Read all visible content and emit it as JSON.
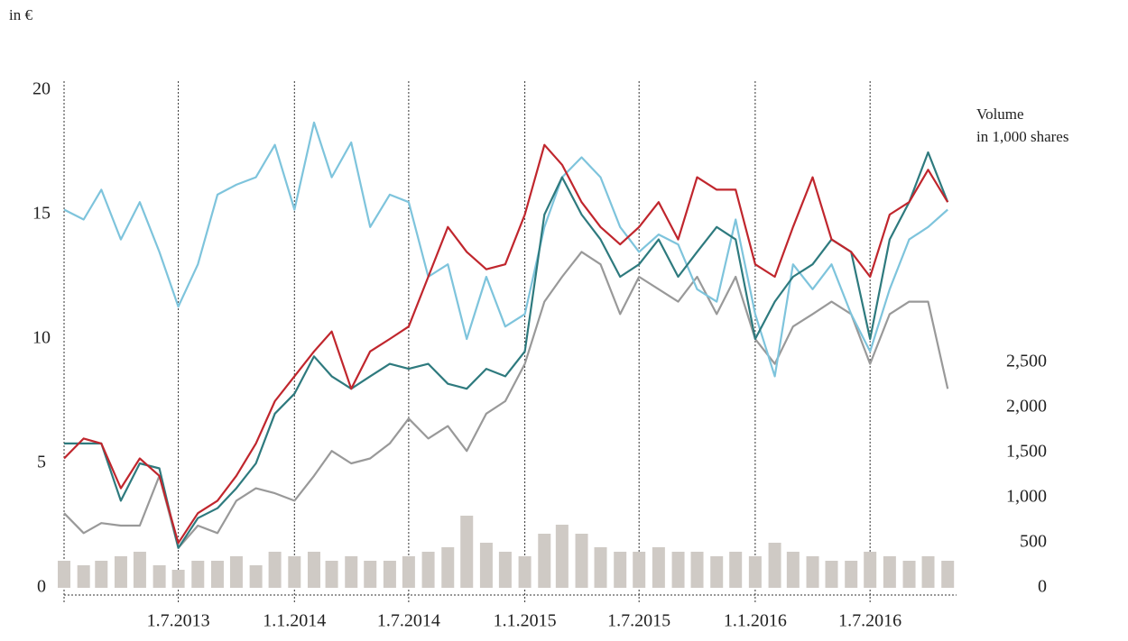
{
  "chart_data": {
    "type": "line",
    "ylabel": "in €",
    "y2label": [
      "Volume",
      "in 1,000 shares"
    ],
    "x": [
      "1.1.2013",
      "1.2.2013",
      "1.3.2013",
      "1.4.2013",
      "1.5.2013",
      "1.6.2013",
      "1.7.2013",
      "1.8.2013",
      "1.9.2013",
      "1.10.2013",
      "1.11.2013",
      "1.12.2013",
      "1.1.2014",
      "1.2.2014",
      "1.3.2014",
      "1.4.2014",
      "1.5.2014",
      "1.6.2014",
      "1.7.2014",
      "1.8.2014",
      "1.9.2014",
      "1.10.2014",
      "1.11.2014",
      "1.12.2014",
      "1.1.2015",
      "1.2.2015",
      "1.3.2015",
      "1.4.2015",
      "1.5.2015",
      "1.6.2015",
      "1.7.2015",
      "1.8.2015",
      "1.9.2015",
      "1.10.2015",
      "1.11.2015",
      "1.12.2015",
      "1.1.2016",
      "1.2.2016",
      "1.3.2016",
      "1.4.2016",
      "1.5.2016",
      "1.6.2016",
      "1.7.2016",
      "1.8.2016",
      "1.9.2016",
      "1.10.2016",
      "1.11.2016"
    ],
    "xlim": [
      "1.1.2013",
      "15.11.2016"
    ],
    "xticks": [
      "1.7.2013",
      "1.1.2014",
      "1.7.2014",
      "1.1.2015",
      "1.7.2015",
      "1.1.2016",
      "1.7.2016"
    ],
    "ylim": [
      0,
      20
    ],
    "yticks": [
      0,
      5,
      10,
      15,
      20
    ],
    "y2lim": [
      0,
      5520
    ],
    "y2ticks": [
      0,
      500,
      {
        "value": 1000,
        "label": "1,000"
      },
      {
        "value": 1500,
        "label": "1,500"
      },
      {
        "value": 2000,
        "label": "2,000"
      },
      {
        "value": 2500,
        "label": "2,500"
      }
    ],
    "grid": true,
    "series": [
      {
        "color": "#999999",
        "values": [
          3.0,
          2.2,
          2.6,
          2.5,
          2.5,
          4.5,
          1.6,
          2.5,
          2.2,
          3.5,
          4.0,
          3.8,
          3.5,
          4.5,
          5.5,
          5.0,
          5.2,
          5.8,
          6.8,
          6.0,
          6.5,
          5.5,
          7.0,
          7.5,
          9.0,
          11.5,
          12.5,
          13.5,
          13.0,
          11.0,
          12.5,
          12.0,
          11.5,
          12.5,
          11.0,
          12.5,
          10.0,
          9.0,
          10.5,
          11.0,
          11.5,
          11.0,
          9.0,
          11.0,
          11.5,
          11.5,
          8.0
        ]
      },
      {
        "color": "#7ec4dc",
        "values": [
          15.2,
          14.8,
          16.0,
          14.0,
          15.5,
          13.5,
          11.3,
          13.0,
          15.8,
          16.2,
          16.5,
          17.8,
          15.2,
          18.7,
          16.5,
          17.9,
          14.5,
          15.8,
          15.5,
          12.5,
          13.0,
          10.0,
          12.5,
          10.5,
          11.0,
          14.5,
          16.5,
          17.3,
          16.5,
          14.5,
          13.5,
          14.2,
          13.8,
          12.0,
          11.5,
          14.8,
          11.0,
          8.5,
          13.0,
          12.0,
          13.0,
          11.0,
          9.5,
          12.0,
          14.0,
          14.5,
          15.2
        ]
      },
      {
        "color": "#2e7a7e",
        "values": [
          5.8,
          5.8,
          5.8,
          3.5,
          5.0,
          4.8,
          1.6,
          2.8,
          3.2,
          4.0,
          5.0,
          7.0,
          7.8,
          9.3,
          8.5,
          8.0,
          8.5,
          9.0,
          8.8,
          9.0,
          8.2,
          8.0,
          8.8,
          8.5,
          9.5,
          15.0,
          16.5,
          15.0,
          14.0,
          12.5,
          13.0,
          14.0,
          12.5,
          13.5,
          14.5,
          14.0,
          10.0,
          11.5,
          12.5,
          13.0,
          14.0,
          13.5,
          10.0,
          14.0,
          15.5,
          17.5,
          15.5
        ]
      },
      {
        "color": "#c0262d",
        "values": [
          5.2,
          6.0,
          5.8,
          4.0,
          5.2,
          4.5,
          1.8,
          3.0,
          3.5,
          4.5,
          5.8,
          7.5,
          8.5,
          9.5,
          10.3,
          8.0,
          9.5,
          10.0,
          10.5,
          12.5,
          14.5,
          13.5,
          12.8,
          13.0,
          15.0,
          17.8,
          17.0,
          15.5,
          14.5,
          13.8,
          14.5,
          15.5,
          14.0,
          16.5,
          16.0,
          16.0,
          13.0,
          12.5,
          14.5,
          16.5,
          14.0,
          13.5,
          12.5,
          15.0,
          15.5,
          16.8,
          15.5
        ]
      }
    ],
    "volume": {
      "color": "#cfcac5",
      "axis": "y2",
      "values": [
        300,
        250,
        300,
        350,
        400,
        250,
        200,
        300,
        300,
        350,
        250,
        400,
        350,
        400,
        300,
        350,
        300,
        300,
        350,
        400,
        450,
        800,
        500,
        400,
        350,
        600,
        700,
        600,
        450,
        400,
        400,
        450,
        400,
        400,
        350,
        400,
        350,
        500,
        400,
        350,
        300,
        300,
        400,
        350,
        300,
        350,
        300
      ]
    }
  }
}
